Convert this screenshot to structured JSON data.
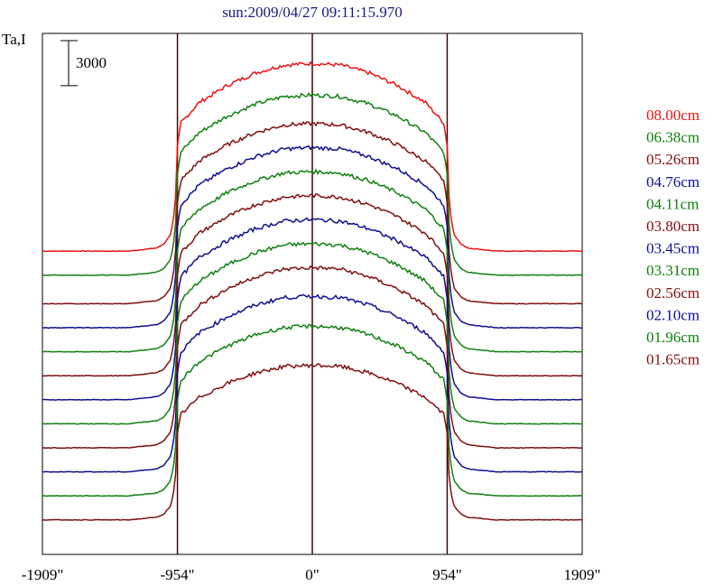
{
  "chart_data": {
    "type": "line",
    "title": "sun:2009/04/27 09:11:15.970",
    "ylabel": "Ta,I",
    "scale_bar_label": "3000",
    "scale_bar_value": 3000,
    "xlim": [
      -1909,
      1909
    ],
    "x_ticks": [
      {
        "value": -1909,
        "label": "-1909\""
      },
      {
        "value": -954,
        "label": "-954\""
      },
      {
        "value": 0,
        "label": "0\""
      },
      {
        "value": 954,
        "label": "954\""
      },
      {
        "value": 1909,
        "label": "1909\""
      }
    ],
    "vertical_lines": [
      -954,
      0,
      954
    ],
    "grid": false,
    "legend_position": "right",
    "profile_shape": {
      "x": [
        -1909,
        -1300,
        -1100,
        -1050,
        -1000,
        -970,
        -954,
        -930,
        -800,
        -600,
        -400,
        -200,
        0,
        200,
        400,
        600,
        800,
        930,
        954,
        970,
        1000,
        1050,
        1100,
        1300,
        1909
      ],
      "y": [
        0,
        0,
        200,
        450,
        1100,
        2800,
        6800,
        8200,
        9500,
        10600,
        11400,
        11900,
        12000,
        11900,
        11400,
        10600,
        9500,
        8200,
        6800,
        2800,
        1100,
        450,
        200,
        0,
        0
      ]
    },
    "series": [
      {
        "name": "08.00cm",
        "color": "#ee1111",
        "baseline": 0,
        "peak": 12500
      },
      {
        "name": "06.38cm",
        "color": "#108010",
        "baseline": -1600,
        "peak": 12000
      },
      {
        "name": "05.26cm",
        "color": "#801010",
        "baseline": -3500,
        "peak": 12000
      },
      {
        "name": "04.76cm",
        "color": "#101090",
        "baseline": -5100,
        "peak": 12000
      },
      {
        "name": "04.11cm",
        "color": "#108010",
        "baseline": -6700,
        "peak": 12000
      },
      {
        "name": "03.80cm",
        "color": "#801010",
        "baseline": -8300,
        "peak": 12000
      },
      {
        "name": "03.45cm",
        "color": "#101090",
        "baseline": -9900,
        "peak": 12000
      },
      {
        "name": "03.31cm",
        "color": "#108010",
        "baseline": -11500,
        "peak": 12000
      },
      {
        "name": "02.56cm",
        "color": "#801010",
        "baseline": -13100,
        "peak": 12000
      },
      {
        "name": "02.10cm",
        "color": "#101090",
        "baseline": -14700,
        "peak": 11700
      },
      {
        "name": "01.96cm",
        "color": "#108010",
        "baseline": -16300,
        "peak": 11300
      },
      {
        "name": "01.65cm",
        "color": "#801010",
        "baseline": -17900,
        "peak": 10300
      }
    ],
    "ylim": [
      -20200,
      14500
    ]
  }
}
